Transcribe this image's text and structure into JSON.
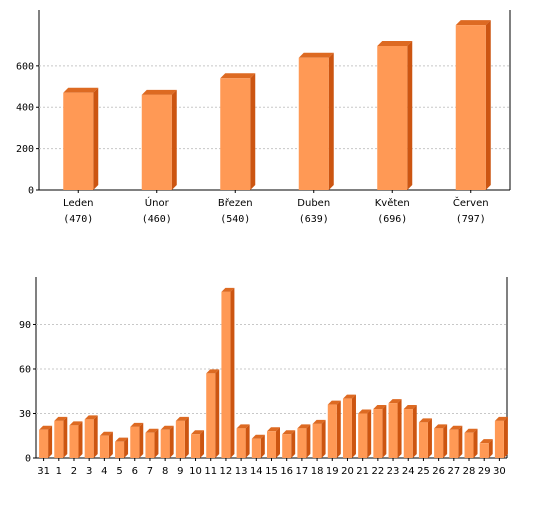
{
  "chart_data": [
    {
      "type": "bar",
      "categories": [
        "Leden",
        "Únor",
        "Březen",
        "Duben",
        "Květen",
        "Červen"
      ],
      "value_labels": [
        "(470)",
        "(460)",
        "(540)",
        "(639)",
        "(696)",
        "(797)"
      ],
      "values": [
        470,
        460,
        540,
        639,
        696,
        797
      ],
      "yticks": [
        "0",
        "200",
        "400",
        "600"
      ],
      "ylim": [
        0,
        870
      ],
      "grid": true,
      "colors": {
        "face": "#ff9955",
        "side": "#cc5511",
        "top": "#dd6a22"
      }
    },
    {
      "type": "bar",
      "categories": [
        "31",
        "1",
        "2",
        "3",
        "4",
        "5",
        "6",
        "7",
        "8",
        "9",
        "10",
        "11",
        "12",
        "13",
        "14",
        "15",
        "16",
        "17",
        "18",
        "19",
        "20",
        "21",
        "22",
        "23",
        "24",
        "25",
        "26",
        "27",
        "28",
        "29",
        "30"
      ],
      "values": [
        19,
        25,
        22,
        26,
        15,
        11,
        21,
        17,
        19,
        25,
        16,
        57,
        112,
        20,
        13,
        18,
        16,
        20,
        23,
        36,
        40,
        30,
        33,
        37,
        33,
        24,
        20,
        19,
        17,
        10,
        25
      ],
      "yticks": [
        "0",
        "30",
        "60",
        "90"
      ],
      "ylim": [
        0,
        122
      ],
      "grid": true,
      "colors": {
        "face": "#ff9955",
        "side": "#cc5511",
        "top": "#dd6a22"
      }
    }
  ]
}
